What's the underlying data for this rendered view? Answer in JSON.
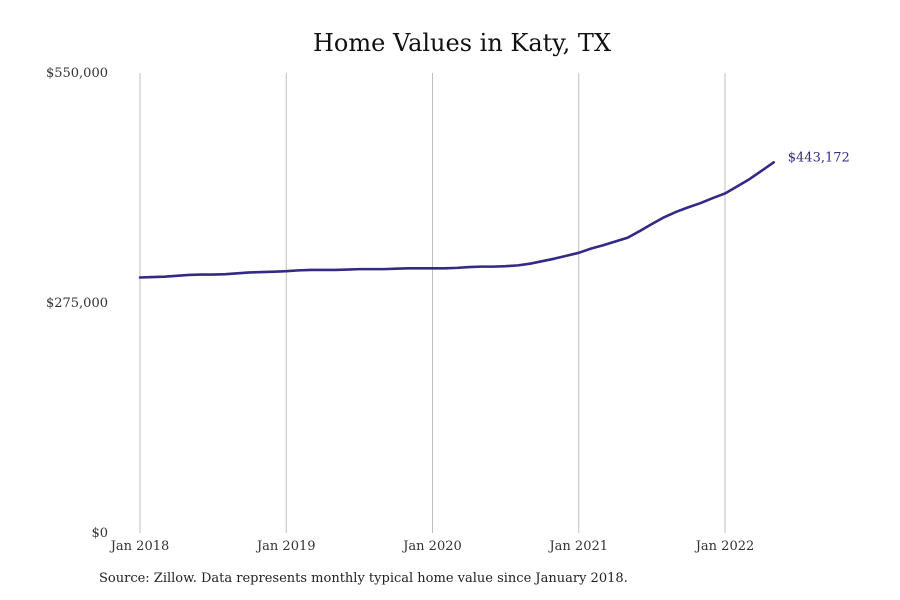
{
  "chart_data": {
    "type": "line",
    "title": "Home Values in Katy, TX",
    "xlabel": "",
    "ylabel": "",
    "x_ticks": [
      "Jan 2018",
      "Jan 2019",
      "Jan 2020",
      "Jan 2021",
      "Jan 2022"
    ],
    "y_ticks": [
      "$550,000",
      "$275,000",
      "$0"
    ],
    "ylim": [
      0,
      550000
    ],
    "xlim": [
      "2018-01",
      "2022-05"
    ],
    "grid": "vertical",
    "colors": {
      "line": "#332a86",
      "grid": "#bfbfbf"
    },
    "end_label": "$443,172",
    "series": [
      {
        "x": [
          "2018-01",
          "2018-02",
          "2018-03",
          "2018-04",
          "2018-05",
          "2018-06",
          "2018-07",
          "2018-08",
          "2018-09",
          "2018-10",
          "2018-11",
          "2018-12",
          "2019-01",
          "2019-02",
          "2019-03",
          "2019-04",
          "2019-05",
          "2019-06",
          "2019-07",
          "2019-08",
          "2019-09",
          "2019-10",
          "2019-11",
          "2019-12",
          "2020-01",
          "2020-02",
          "2020-03",
          "2020-04",
          "2020-05",
          "2020-06",
          "2020-07",
          "2020-08",
          "2020-09",
          "2020-10",
          "2020-11",
          "2020-12",
          "2021-01",
          "2021-02",
          "2021-03",
          "2021-04",
          "2021-05",
          "2021-06",
          "2021-07",
          "2021-08",
          "2021-09",
          "2021-10",
          "2021-11",
          "2021-12",
          "2022-01",
          "2022-02",
          "2022-03",
          "2022-04",
          "2022-05"
        ],
        "values": [
          305500,
          306000,
          306500,
          307500,
          308500,
          309000,
          309000,
          309500,
          310500,
          311500,
          312000,
          312500,
          313000,
          314000,
          314500,
          314500,
          314500,
          315000,
          315500,
          315500,
          315500,
          316000,
          316500,
          316500,
          316500,
          316500,
          317000,
          318000,
          318500,
          318500,
          319000,
          320000,
          322000,
          325000,
          328000,
          331500,
          335000,
          340000,
          344000,
          348500,
          353000,
          361000,
          369500,
          377500,
          384000,
          389500,
          394500,
          400500,
          406000,
          414500,
          423000,
          433000,
          443172
        ]
      }
    ]
  },
  "footer": {
    "source": "Source: Zillow. Data represents monthly typical home value since January 2018."
  }
}
